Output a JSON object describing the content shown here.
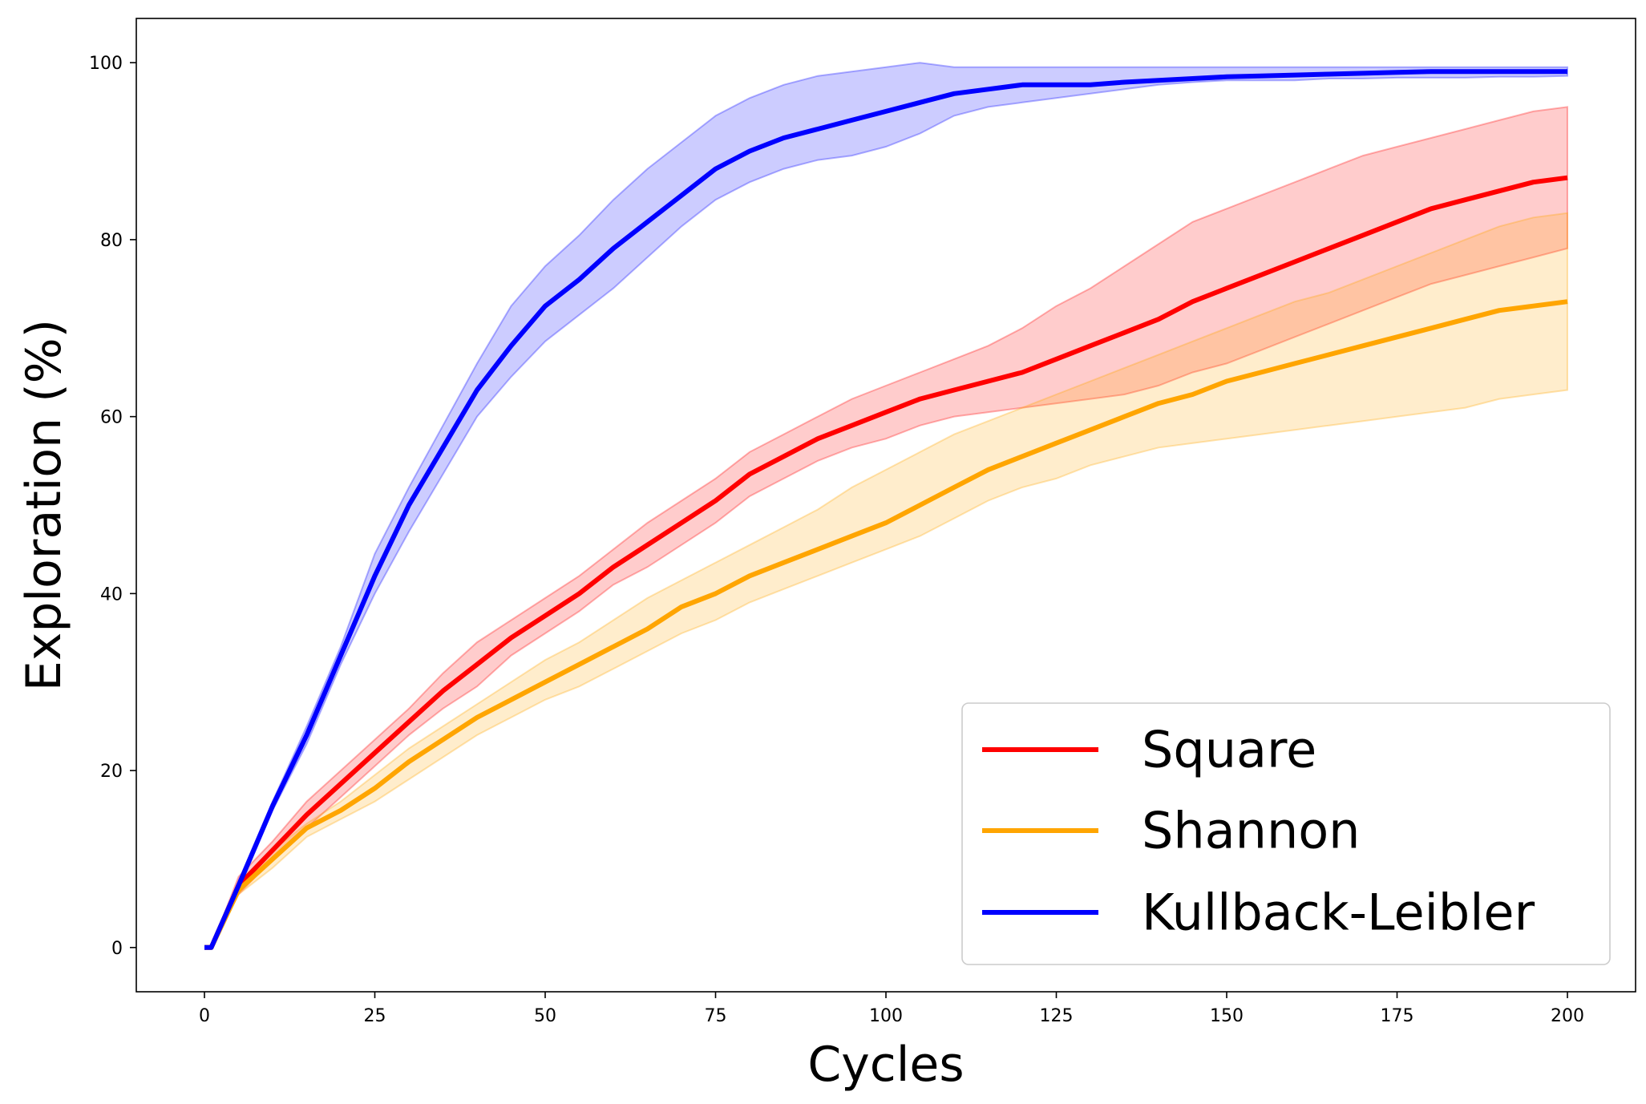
{
  "chart_data": {
    "type": "line",
    "title": "",
    "xlabel": "Cycles",
    "ylabel": "Exploration (%)",
    "xlim": [
      -10,
      210
    ],
    "ylim": [
      -5,
      105
    ],
    "xticks": [
      0,
      25,
      50,
      75,
      100,
      125,
      150,
      175,
      200
    ],
    "yticks": [
      0,
      20,
      40,
      60,
      80,
      100
    ],
    "grid": false,
    "legend_position": "lower-right",
    "x": [
      0,
      1,
      5,
      10,
      15,
      20,
      25,
      30,
      35,
      40,
      45,
      50,
      55,
      60,
      65,
      70,
      75,
      80,
      85,
      90,
      95,
      100,
      105,
      110,
      115,
      120,
      125,
      130,
      135,
      140,
      145,
      150,
      155,
      160,
      165,
      170,
      175,
      180,
      185,
      190,
      195,
      200
    ],
    "series": [
      {
        "name": "Square",
        "color": "#ff0000",
        "band_color": "#ff0000",
        "values": [
          0,
          0,
          7,
          11,
          15,
          18.5,
          22,
          25.5,
          29,
          32,
          35,
          37.5,
          40,
          43,
          45.5,
          48,
          50.5,
          53.5,
          55.5,
          57.5,
          59,
          60.5,
          62,
          63,
          64,
          65,
          66.5,
          68,
          69.5,
          71,
          73,
          74.5,
          76,
          77.5,
          79,
          80.5,
          82,
          83.5,
          84.5,
          85.5,
          86.5,
          87
        ],
        "upper": [
          0,
          0,
          8,
          12,
          16.5,
          20,
          23.5,
          27,
          31,
          34.5,
          37,
          39.5,
          42,
          45,
          48,
          50.5,
          53,
          56,
          58,
          60,
          62,
          63.5,
          65,
          66.5,
          68,
          70,
          72.5,
          74.5,
          77,
          79.5,
          82,
          83.5,
          85,
          86.5,
          88,
          89.5,
          90.5,
          91.5,
          92.5,
          93.5,
          94.5,
          95
        ],
        "lower": [
          0,
          0,
          6,
          10,
          13.5,
          17,
          20.5,
          24,
          27,
          29.5,
          33,
          35.5,
          38,
          41,
          43,
          45.5,
          48,
          51,
          53,
          55,
          56.5,
          57.5,
          59,
          60,
          60.5,
          61,
          61.5,
          62,
          62.5,
          63.5,
          65,
          66,
          67.5,
          69,
          70.5,
          72,
          73.5,
          75,
          76,
          77,
          78,
          79
        ]
      },
      {
        "name": "Shannon",
        "color": "#ffa500",
        "band_color": "#ffa500",
        "values": [
          0,
          0,
          6.5,
          10,
          13.5,
          15.5,
          18,
          21,
          23.5,
          26,
          28,
          30,
          32,
          34,
          36,
          38.5,
          40,
          42,
          43.5,
          45,
          46.5,
          48,
          50,
          52,
          54,
          55.5,
          57,
          58.5,
          60,
          61.5,
          62.5,
          64,
          65,
          66,
          67,
          68,
          69,
          70,
          71,
          72,
          72.5,
          73
        ],
        "upper": [
          0,
          0,
          7,
          11,
          14,
          16.5,
          19.5,
          22.5,
          25,
          27.5,
          30,
          32.5,
          34.5,
          37,
          39.5,
          41.5,
          43.5,
          45.5,
          47.5,
          49.5,
          52,
          54,
          56,
          58,
          59.5,
          61,
          62.5,
          64,
          65.5,
          67,
          68.5,
          70,
          71.5,
          73,
          74,
          75.5,
          77,
          78.5,
          80,
          81.5,
          82.5,
          83
        ],
        "lower": [
          0,
          0,
          6,
          9,
          12.5,
          14.5,
          16.5,
          19,
          21.5,
          24,
          26,
          28,
          29.5,
          31.5,
          33.5,
          35.5,
          37,
          39,
          40.5,
          42,
          43.5,
          45,
          46.5,
          48.5,
          50.5,
          52,
          53,
          54.5,
          55.5,
          56.5,
          57,
          57.5,
          58,
          58.5,
          59,
          59.5,
          60,
          60.5,
          61,
          62,
          62.5,
          63
        ]
      },
      {
        "name": "Kullback-Leibler",
        "color": "#0000ff",
        "band_color": "#0000ff",
        "values": [
          0,
          0,
          7,
          16,
          24,
          33,
          42,
          50,
          56.5,
          63,
          68,
          72.5,
          75.5,
          79,
          82,
          85,
          88,
          90,
          91.5,
          92.5,
          93.5,
          94.5,
          95.5,
          96.5,
          97,
          97.5,
          97.5,
          97.5,
          97.8,
          98,
          98.2,
          98.4,
          98.5,
          98.6,
          98.7,
          98.8,
          98.9,
          99,
          99,
          99,
          99,
          99
        ],
        "upper": [
          0,
          0,
          7.5,
          16.5,
          25,
          34,
          44.5,
          52,
          59,
          66,
          72.5,
          77,
          80.5,
          84.5,
          88,
          91,
          94,
          96,
          97.5,
          98.5,
          99,
          99.5,
          100,
          99.5,
          99.5,
          99.5,
          99.5,
          99.5,
          99.5,
          99.5,
          99.5,
          99.5,
          99.5,
          99.5,
          99.5,
          99.5,
          99.5,
          99.5,
          99.5,
          99.5,
          99.5,
          99.5
        ],
        "lower": [
          0,
          0,
          6.5,
          15.5,
          23,
          32,
          40,
          47,
          53.5,
          60,
          64.5,
          68.5,
          71.5,
          74.5,
          78,
          81.5,
          84.5,
          86.5,
          88,
          89,
          89.5,
          90.5,
          92,
          94,
          95,
          95.5,
          96,
          96.5,
          97,
          97.5,
          97.8,
          98,
          98,
          98,
          98.2,
          98.2,
          98.3,
          98.3,
          98.3,
          98.4,
          98.4,
          98.5
        ]
      }
    ]
  }
}
